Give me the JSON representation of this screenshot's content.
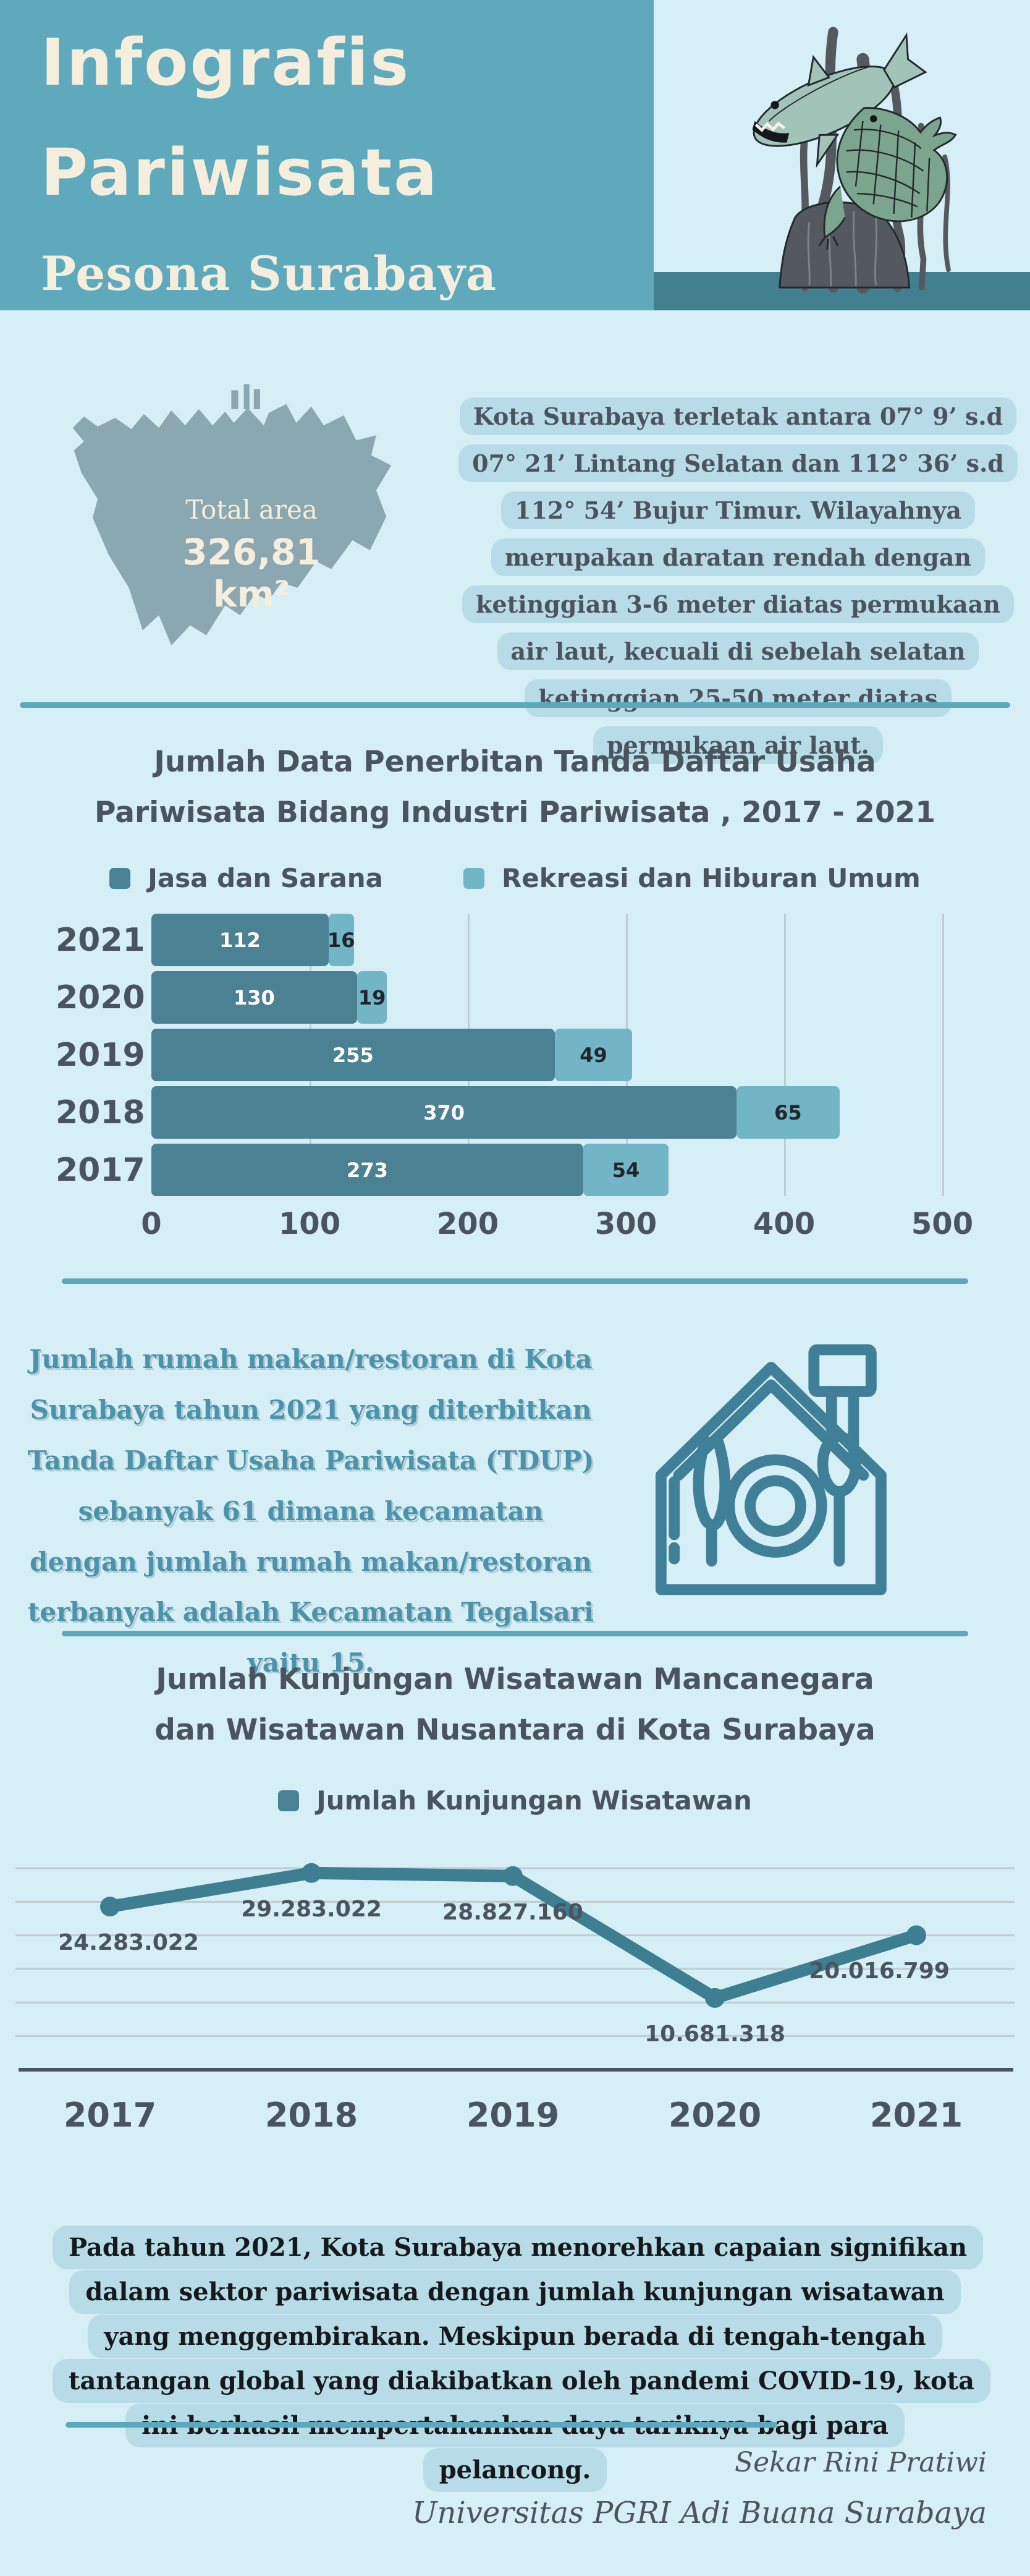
{
  "header": {
    "title_line1": "Infografis",
    "title_line2": "Pariwisata",
    "subtitle": "Pesona Surabaya"
  },
  "map_section": {
    "total_area_label": "Total area",
    "total_area_value": "326,81 km²",
    "description": "Kota Surabaya terletak antara 07° 9’ s.d 07° 21’ Lintang Selatan dan 112° 36’ s.d 112° 54’ Bujur Timur. Wilayahnya merupakan daratan rendah dengan ketinggian 3-6 meter diatas permukaan air laut, kecuali di sebelah selatan ketinggian 25-50 meter diatas permukaan air laut."
  },
  "restaurant_section": {
    "text": "Jumlah rumah makan/restoran di Kota Surabaya tahun 2021 yang diterbitkan Tanda Daftar Usaha Pariwisata (TDUP) sebanyak 61 dimana kecamatan dengan jumlah rumah makan/restoran terbanyak adalah Kecamatan Tegalsari yaitu 15."
  },
  "closing": {
    "text": "Pada tahun 2021, Kota Surabaya menorehkan capaian signifikan dalam sektor pariwisata dengan jumlah kunjungan wisatawan yang menggembirakan. Meskipun berada di tengah-tengah tantangan global yang diakibatkan oleh pandemi COVID-19, kota ini berhasil mempertahankan daya tariknya bagi para pelancong."
  },
  "footer": {
    "author": "Sekar Rini Pratiwi",
    "institution": "Universitas PGRI Adi Buana Surabaya"
  },
  "chart_data": [
    {
      "type": "bar",
      "orientation": "horizontal",
      "stacked": true,
      "title": "Jumlah Data Penerbitan Tanda Daftar Usaha Pariwisata Bidang Industri Pariwisata , 2017 - 2021",
      "categories": [
        "2021",
        "2020",
        "2019",
        "2018",
        "2017"
      ],
      "series": [
        {
          "name": "Jasa dan Sarana",
          "values": [
            112,
            130,
            255,
            370,
            273
          ],
          "color": "#4a8193"
        },
        {
          "name": "Rekreasi dan Hiburan Umum",
          "values": [
            16,
            19,
            49,
            65,
            54
          ],
          "color": "#72b5c6"
        }
      ],
      "xlim": [
        0,
        500
      ],
      "x_ticks": [
        0,
        100,
        200,
        300,
        400,
        500
      ],
      "grid": true,
      "legend_position": "top"
    },
    {
      "type": "line",
      "title": "Jumlah Kunjungan Wisatawan Mancanegara dan Wisatawan Nusantara di Kota Surabaya",
      "legend": [
        "Jumlah Kunjungan Wisatawan"
      ],
      "x": [
        "2017",
        "2018",
        "2019",
        "2020",
        "2021"
      ],
      "values": [
        24283022,
        29283022,
        28827160,
        10681318,
        20016799
      ],
      "labels": [
        "24.283.022",
        "29.283.022",
        "28.827.160",
        "10.681.318",
        "20.016.799"
      ],
      "ylim": [
        0,
        30000000
      ],
      "gridline_count": 7,
      "grid": true,
      "legend_position": "top"
    }
  ],
  "colors": {
    "background": "#d6eef5",
    "header_teal": "#5fa9bc",
    "band_teal": "#42808f",
    "cream": "#f6eedd",
    "text_dark": "#4a545f",
    "highlight": "#b7dce8",
    "map_fill": "#8ba7b1",
    "bar_dark": "#4a8193",
    "bar_light": "#72b5c6",
    "gridline": "#bccdd2",
    "divider": "#5ba9ba",
    "restaurant_text": "#4c93a9",
    "line": "#3d7e91",
    "axis_dark": "#4a545f",
    "closing_text": "#15191d",
    "footer_text": "#4d545e"
  }
}
